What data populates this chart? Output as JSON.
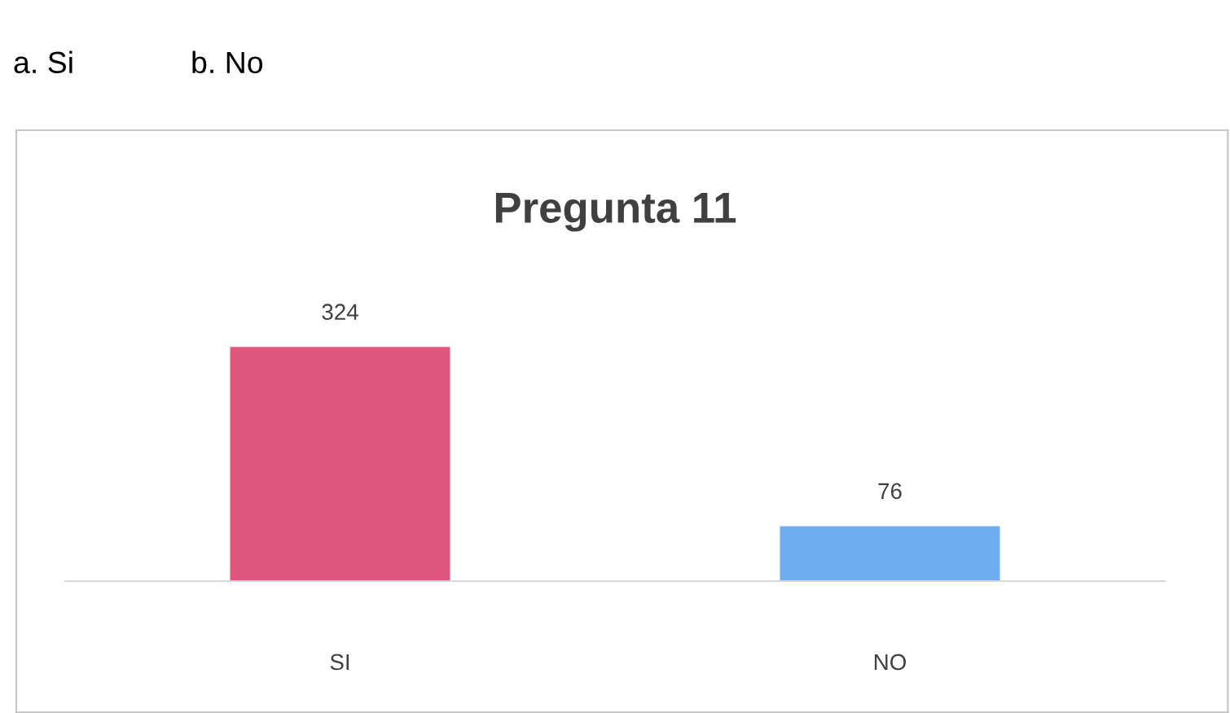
{
  "chart_data": {
    "type": "bar",
    "title": "Pregunta 11",
    "annotations": [
      "a. Si",
      "b. No"
    ],
    "categories": [
      "SI",
      "NO"
    ],
    "values": [
      324,
      76
    ],
    "colors": [
      "#e0577e",
      "#6eaef0"
    ],
    "data_labels": true,
    "grid": false,
    "legend": false
  }
}
